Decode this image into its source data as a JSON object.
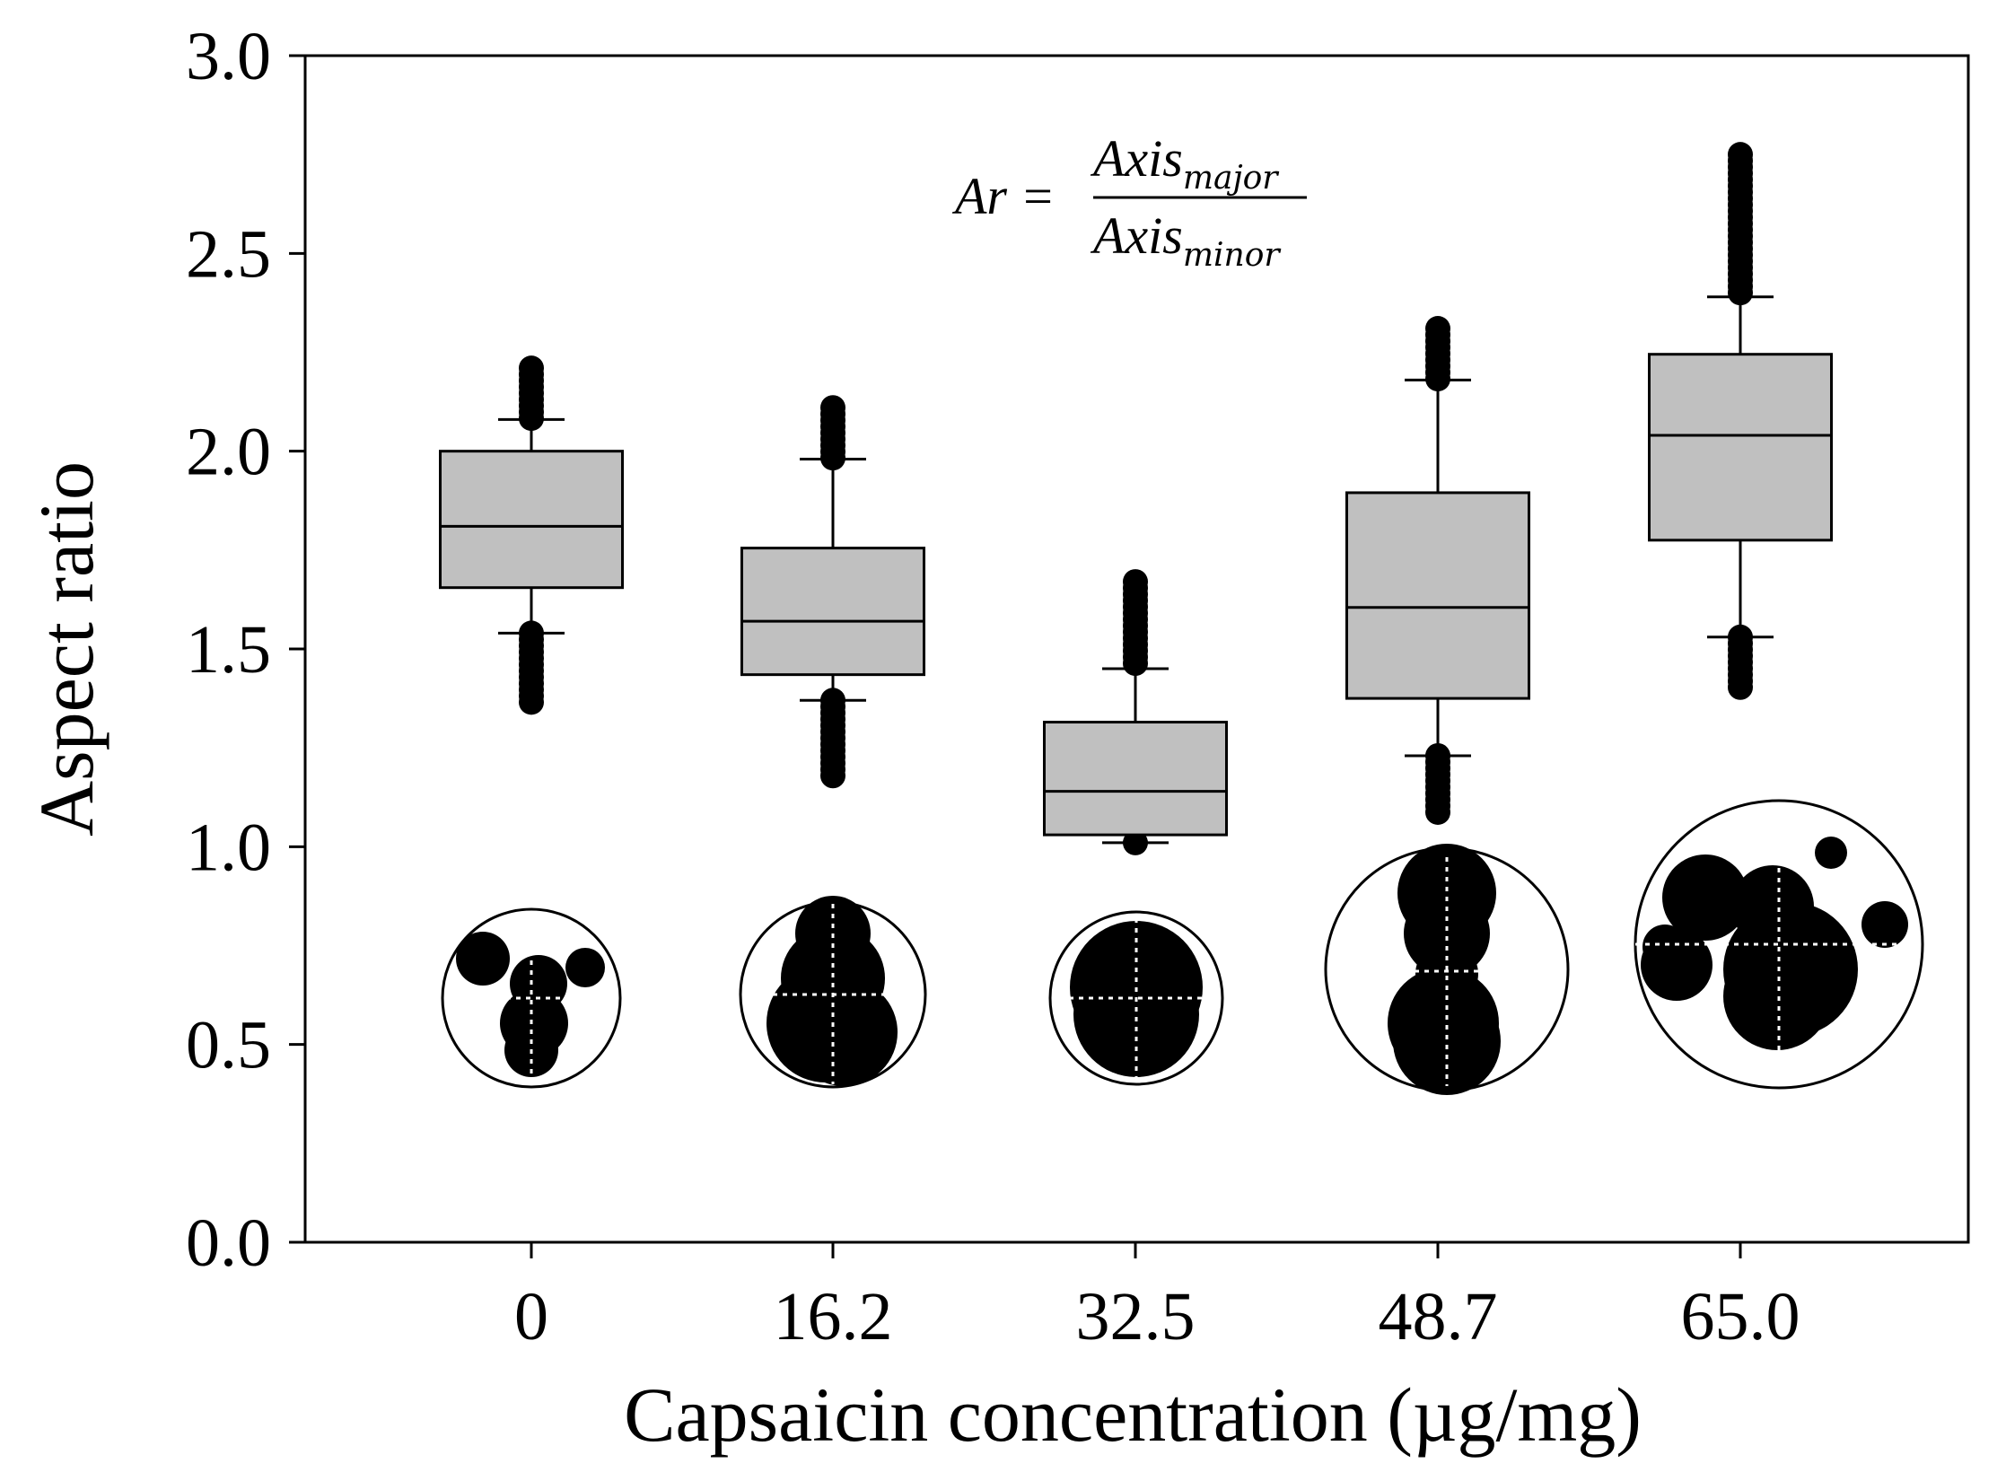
{
  "chart_data": {
    "type": "box",
    "xlabel": "Capsaicin concentration (µg/mg)",
    "ylabel": "Aspect ratio",
    "ylim": [
      0,
      3.0
    ],
    "yticks": [
      "0.0",
      "0.5",
      "1.0",
      "1.5",
      "2.0",
      "2.5",
      "3.0"
    ],
    "categories": [
      "0",
      "16.2",
      "32.5",
      "48.7",
      "65.0"
    ],
    "boxes": [
      {
        "category": "0",
        "q1": 1.655,
        "median": 1.81,
        "q3": 2.0,
        "whisker_low": 1.54,
        "whisker_high": 2.08,
        "outliers_low": [
          1.36,
          1.54
        ],
        "outliers_high": [
          2.08,
          2.21
        ]
      },
      {
        "category": "16.2",
        "q1": 1.435,
        "median": 1.57,
        "q3": 1.755,
        "whisker_low": 1.37,
        "whisker_high": 1.98,
        "outliers_low": [
          1.17,
          1.37
        ],
        "outliers_high": [
          1.98,
          2.11
        ]
      },
      {
        "category": "32.5",
        "q1": 1.03,
        "median": 1.14,
        "q3": 1.315,
        "whisker_low": 1.01,
        "whisker_high": 1.45,
        "outliers_low": [
          1.0,
          1.01
        ],
        "outliers_high": [
          1.45,
          1.67
        ]
      },
      {
        "category": "48.7",
        "q1": 1.375,
        "median": 1.605,
        "q3": 1.895,
        "whisker_low": 1.23,
        "whisker_high": 2.18,
        "outliers_low": [
          1.08,
          1.23
        ],
        "outliers_high": [
          2.18,
          2.31
        ]
      },
      {
        "category": "65.0",
        "q1": 1.775,
        "median": 2.04,
        "q3": 2.245,
        "whisker_low": 1.53,
        "whisker_high": 2.39,
        "outliers_low": [
          1.4,
          1.53
        ],
        "outliers_high": [
          2.39,
          2.75
        ]
      }
    ],
    "formula": {
      "lhs": "Ar =",
      "numerator": "Axis",
      "numerator_sub": "major",
      "denominator": "Axis",
      "denominator_sub": "minor"
    },
    "box_fill": "#c0c0c0",
    "line_color": "#000000"
  }
}
